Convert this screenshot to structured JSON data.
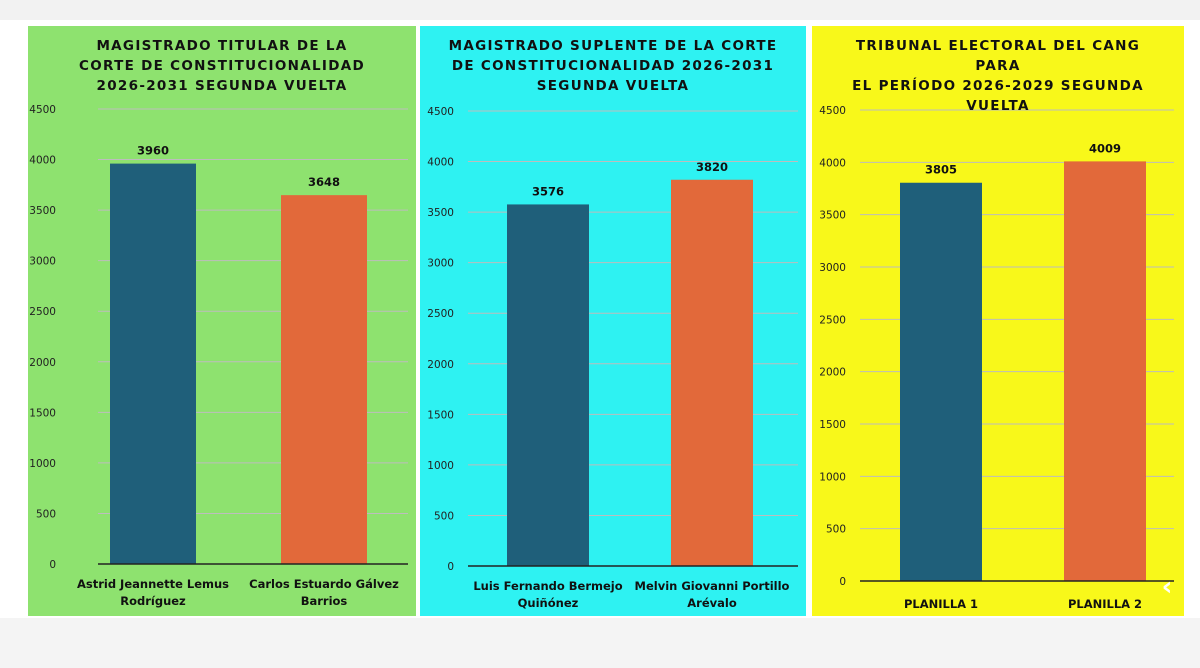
{
  "colors": {
    "bar_dark": "#1f5f7a",
    "bar_orange": "#e2693a",
    "grid": "#bdbdbd"
  },
  "nav": {
    "icon": "chevron-left-icon",
    "glyph": "‹"
  },
  "chart_data": [
    {
      "type": "bar",
      "title": "MAGISTRADO TITULAR DE LA CORTE DE CONSTITUCIONALIDAD 2026-2031 SEGUNDA VUELTA",
      "title_lines": [
        "MAGISTRADO TITULAR DE LA",
        "CORTE DE CONSTITUCIONALIDAD",
        "2026-2031 SEGUNDA VUELTA"
      ],
      "background": "#8ee26f",
      "categories": [
        "Astrid Jeannette Lemus Rodríguez",
        "Carlos Estuardo Gálvez Barrios"
      ],
      "category_lines": [
        [
          "Astrid Jeannette Lemus",
          "Rodríguez"
        ],
        [
          "Carlos Estuardo Gálvez",
          "Barrios"
        ]
      ],
      "values": [
        3960,
        3648
      ],
      "value_labels": [
        "3960",
        "3648"
      ],
      "bar_colors": [
        "#1f5f7a",
        "#e2693a"
      ],
      "ylim": [
        0,
        4500
      ],
      "ticks": [
        0,
        500,
        1000,
        1500,
        2000,
        2500,
        3000,
        3500,
        4000,
        4500
      ],
      "tick_labels": [
        "0",
        "500",
        "1000",
        "1500",
        "2000",
        "2500",
        "3000",
        "3500",
        "4000",
        "4500"
      ],
      "grid": true,
      "xlabel": "",
      "ylabel": ""
    },
    {
      "type": "bar",
      "title": "MAGISTRADO SUPLENTE DE LA CORTE DE CONSTITUCIONALIDAD 2026-2031 SEGUNDA VUELTA",
      "title_lines": [
        "MAGISTRADO SUPLENTE DE LA CORTE",
        "DE CONSTITUCIONALIDAD 2026-2031",
        "SEGUNDA VUELTA"
      ],
      "background": "#2ef2f2",
      "categories": [
        "Luis Fernando Bermejo Quiñónez",
        "Melvin Giovanni Portillo Arévalo"
      ],
      "category_lines": [
        [
          "Luis Fernando Bermejo",
          "Quiñónez"
        ],
        [
          "Melvin Giovanni Portillo",
          "Arévalo"
        ]
      ],
      "values": [
        3576,
        3820
      ],
      "value_labels": [
        "3576",
        "3820"
      ],
      "bar_colors": [
        "#1f5f7a",
        "#e2693a"
      ],
      "ylim": [
        0,
        4500
      ],
      "ticks": [
        0,
        500,
        1000,
        1500,
        2000,
        2500,
        3000,
        3500,
        4000,
        4500
      ],
      "tick_labels": [
        "0",
        "500",
        "1000",
        "1500",
        "2000",
        "2500",
        "3000",
        "3500",
        "4000",
        "4500"
      ],
      "grid": true,
      "xlabel": "",
      "ylabel": ""
    },
    {
      "type": "bar",
      "title": "TRIBUNAL ELECTORAL DEL CANG PARA EL PERÍODO 2026-2029 SEGUNDA VUELTA",
      "title_lines": [
        "TRIBUNAL ELECTORAL DEL CANG PARA",
        "EL PERÍODO 2026-2029 SEGUNDA",
        "VUELTA"
      ],
      "background": "#f8f81a",
      "categories": [
        "PLANILLA 1",
        "PLANILLA 2"
      ],
      "category_lines": [
        [
          "PLANILLA 1"
        ],
        [
          "PLANILLA 2"
        ]
      ],
      "values": [
        3805,
        4009
      ],
      "value_labels": [
        "3805",
        "4009"
      ],
      "bar_colors": [
        "#1f5f7a",
        "#e2693a"
      ],
      "ylim": [
        0,
        4500
      ],
      "ticks": [
        0,
        500,
        1000,
        1500,
        2000,
        2500,
        3000,
        3500,
        4000,
        4500
      ],
      "tick_labels": [
        "0",
        "500",
        "1000",
        "1500",
        "2000",
        "2500",
        "3000",
        "3500",
        "4000",
        "4500"
      ],
      "grid": true,
      "xlabel": "",
      "ylabel": ""
    }
  ]
}
